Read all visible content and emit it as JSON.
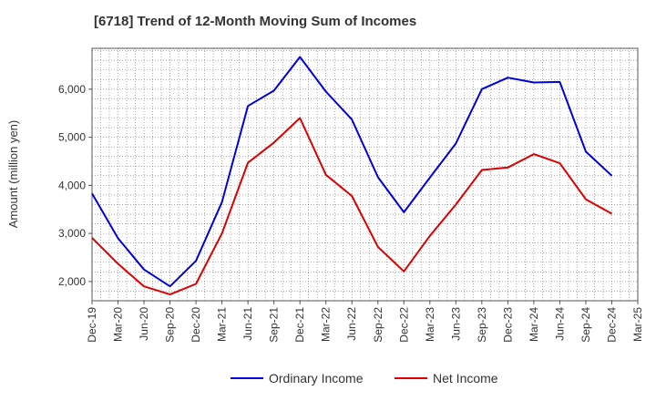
{
  "title": "[6718]  Trend of 12-Month Moving Sum of Incomes",
  "chart_data": {
    "type": "line",
    "title": "[6718]  Trend of 12-Month Moving Sum of Incomes",
    "xlabel": "",
    "ylabel": "Amount (million yen)",
    "categories": [
      "Dec-19",
      "Mar-20",
      "Jun-20",
      "Sep-20",
      "Dec-20",
      "Mar-21",
      "Jun-21",
      "Sep-21",
      "Dec-21",
      "Mar-22",
      "Jun-22",
      "Sep-22",
      "Dec-22",
      "Mar-23",
      "Jun-23",
      "Sep-23",
      "Dec-23",
      "Mar-24",
      "Jun-24",
      "Sep-24",
      "Dec-24",
      "Mar-25"
    ],
    "yticks": [
      2000,
      3000,
      4000,
      5000,
      6000
    ],
    "ytick_labels": [
      "2,000",
      "3,000",
      "4,000",
      "5,000",
      "6,000"
    ],
    "ylim": [
      1600,
      6850
    ],
    "grid": true,
    "legend_position": "bottom",
    "series": [
      {
        "name": "Ordinary Income",
        "color": "#0000dd",
        "values": [
          3830,
          2900,
          2250,
          1900,
          2430,
          3650,
          5650,
          5970,
          6670,
          5950,
          5370,
          4170,
          3440,
          4160,
          4870,
          6000,
          6240,
          6140,
          6150,
          4700,
          4200,
          null
        ]
      },
      {
        "name": "Net Income",
        "color": "#dd0000",
        "values": [
          2910,
          2370,
          1900,
          1730,
          1950,
          3000,
          4470,
          4890,
          5400,
          4220,
          3780,
          2720,
          2210,
          2950,
          3600,
          4320,
          4370,
          4650,
          4460,
          3710,
          3410,
          null
        ]
      }
    ]
  }
}
